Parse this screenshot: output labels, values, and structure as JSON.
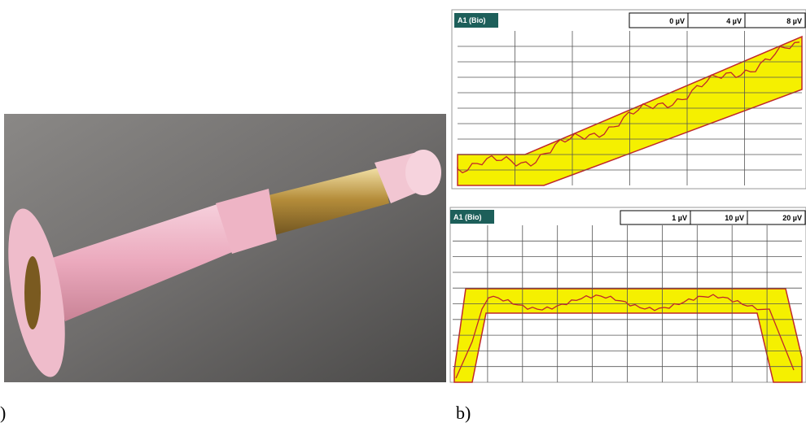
{
  "figure": {
    "panel_a": {
      "label": ")"
    },
    "panel_b": {
      "label": "b)",
      "top_screen": {
        "channel": "A1 (Bio)",
        "scale_boxes": [
          "0 µV",
          "4 µV",
          "8 µV"
        ]
      },
      "bottom_screen": {
        "channel": "A1 (Bio)",
        "scale_boxes": [
          "1 µV",
          "10 µV",
          "20 µV"
        ]
      }
    }
  }
}
